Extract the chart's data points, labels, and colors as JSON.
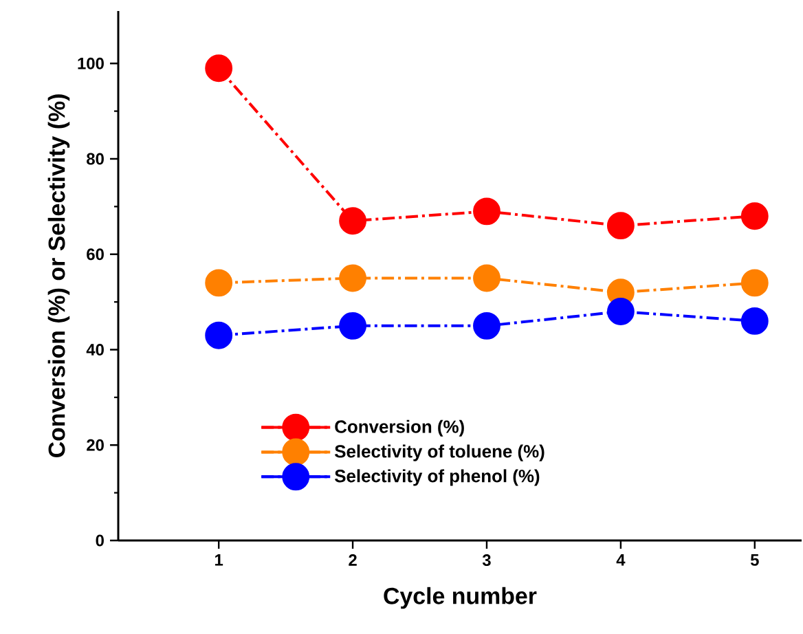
{
  "chart_data": {
    "type": "line",
    "xlabel": "Cycle number",
    "ylabel": "Conversion (%) or Selectivity (%)",
    "x": [
      1,
      2,
      3,
      4,
      5
    ],
    "xlim": [
      0.25,
      5.35
    ],
    "xticks": [
      1,
      2,
      3,
      4,
      5
    ],
    "ylim": [
      0,
      111
    ],
    "yticks": [
      0,
      20,
      40,
      60,
      80,
      100
    ],
    "marker": "circle",
    "line_style": "dashdotted",
    "legend": "bottom",
    "grid": false,
    "series": [
      {
        "name": "Conversion (%)",
        "color": "#ff0000",
        "values": [
          99,
          67,
          69,
          66,
          68
        ]
      },
      {
        "name": "Selectivity of toluene (%)",
        "color": "#ff8000",
        "values": [
          54,
          55,
          55,
          52,
          54
        ]
      },
      {
        "name": "Selectivity of phenol (%)",
        "color": "#0000ff",
        "values": [
          43,
          45,
          45,
          48,
          46
        ]
      }
    ]
  }
}
